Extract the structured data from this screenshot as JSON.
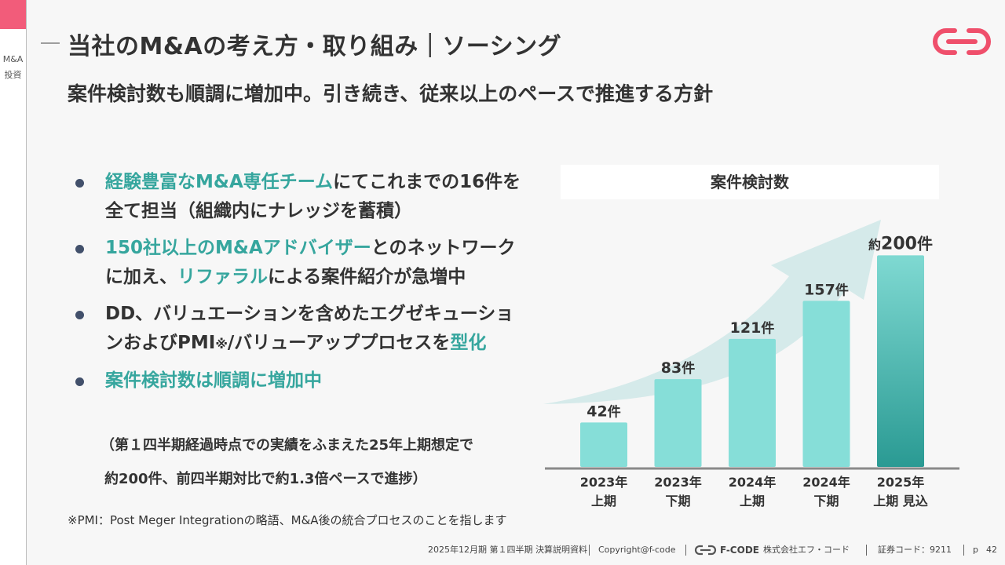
{
  "sidebar": {
    "label": "M&A投資"
  },
  "header": {
    "title": "当社のM&Aの考え方・取り組み｜ソーシング",
    "subtitle": "案件検討数も順調に増加中。引き続き、従来以上のペースで推進する方針"
  },
  "bullets": [
    {
      "hl1": "経験豊富なM&A専任チーム",
      "text1": "にてこれまでの16件を全て担当（組織内にナレッジを蓄積）"
    },
    {
      "hl1": "150社以上のM&Aアドバイザー",
      "text1": "とのネットワークに加え、",
      "hl2": "リファラル",
      "text2": "による案件紹介が急増中"
    },
    {
      "text1": "DD、バリュエーションを含めたエグゼキューションおよびPMI",
      "mark": "※",
      "text2": "/バリューアッププロセスを",
      "hl1": "型化"
    },
    {
      "hl1": "案件検討数は順調に増加中"
    }
  ],
  "notes": {
    "line1": "（第１四半期経過時点での実績をふまえた25年上期想定で",
    "line2": "約200件、前四半期対比で約1.3倍ペースで進捗）"
  },
  "footnote": "※PMI：Post Meger Integrationの略語、M&A後の統合プロセスのことを指します",
  "chart_data": {
    "type": "bar",
    "title": "案件検討数",
    "categories": [
      [
        "2023年",
        "上期"
      ],
      [
        "2023年",
        "下期"
      ],
      [
        "2024年",
        "上期"
      ],
      [
        "2024年",
        "下期"
      ],
      [
        "2025年",
        "上期 見込"
      ]
    ],
    "values": [
      42,
      83,
      121,
      157,
      200
    ],
    "data_labels": [
      {
        "prefix": "",
        "value": "42",
        "unit": "件"
      },
      {
        "prefix": "",
        "value": "83",
        "unit": "件"
      },
      {
        "prefix": "",
        "value": "121",
        "unit": "件"
      },
      {
        "prefix": "",
        "value": "157",
        "unit": "件"
      },
      {
        "prefix": "約",
        "value": "200",
        "unit": "件"
      }
    ],
    "ylim": [
      0,
      230
    ],
    "colors": {
      "bar": "#86ded8",
      "bar_highlight_top": "#7fd9d2",
      "bar_highlight_bottom": "#2a9a93",
      "arrow": "#cfe7e8",
      "axis": "#8a8a8a"
    }
  },
  "footer": {
    "doc": "2025年12月期 第１四半期 決算説明資料",
    "copyright": "Copyright@f-code",
    "brand": "F-CODE",
    "company": "株式会社エフ・コード",
    "code": "証券コード：9211",
    "page_prefix": "p",
    "page": "42"
  },
  "colors": {
    "accent": "#f25c7a",
    "highlight": "#36a69e"
  }
}
